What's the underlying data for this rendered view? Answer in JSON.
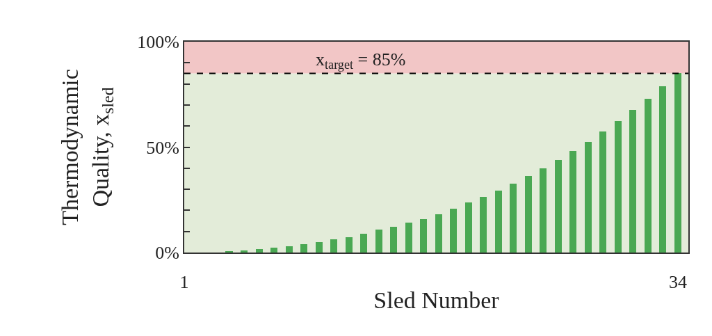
{
  "chart_data": {
    "type": "bar",
    "xlabel": "Sled Number",
    "ylabel": "Thermodynamic\nQuality, x$_{sled}$",
    "x": [
      1,
      2,
      3,
      4,
      5,
      6,
      7,
      8,
      9,
      10,
      11,
      12,
      13,
      14,
      15,
      16,
      17,
      18,
      19,
      20,
      21,
      22,
      23,
      24,
      25,
      26,
      27,
      28,
      29,
      30,
      31,
      32,
      33,
      34
    ],
    "values": [
      0,
      0,
      0,
      0.5,
      1,
      1.5,
      2.3,
      3,
      3.8,
      5,
      6.2,
      7.3,
      8.8,
      10.9,
      12.3,
      14.2,
      16,
      18.3,
      20.8,
      23.6,
      26.4,
      29.3,
      32.6,
      36.4,
      39.9,
      43.9,
      48.3,
      52.6,
      57.5,
      62.4,
      67.5,
      73.1,
      78.9,
      85
    ],
    "color": "#4aa853",
    "xlim": [
      1,
      34.7
    ],
    "xticks": [
      1,
      34
    ],
    "ylim": [
      0,
      100
    ],
    "yticks": [
      {
        "value": 0,
        "label": "0%"
      },
      {
        "value": 10,
        "label": null
      },
      {
        "value": 20,
        "label": null
      },
      {
        "value": 30,
        "label": null
      },
      {
        "value": 40,
        "label": null
      },
      {
        "value": 50,
        "label": "50%"
      },
      {
        "value": 60,
        "label": null
      },
      {
        "value": 70,
        "label": null
      },
      {
        "value": 80,
        "label": null
      },
      {
        "value": 90,
        "label": null
      },
      {
        "value": 100,
        "label": "100%"
      }
    ],
    "ref_lines": [
      {
        "axis": "y",
        "value": 85,
        "label": "x$_{target}$ = 85%",
        "color": "#000000",
        "line_style": "dashed"
      }
    ],
    "bands": [
      {
        "axis": "y",
        "from": 0,
        "to": 85,
        "color": "#e3ecd9"
      },
      {
        "axis": "y",
        "from": 85,
        "to": 100,
        "color": "#f2c6c6"
      }
    ],
    "tick_labels": "xy"
  }
}
